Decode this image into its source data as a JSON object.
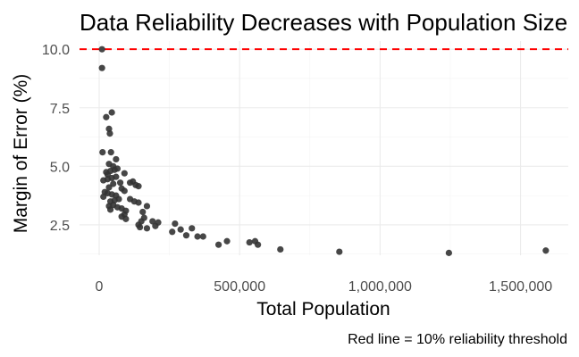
{
  "chart_data": {
    "type": "scatter",
    "title": "Data Reliability Decreases with Population Size",
    "xlabel": "Total Population",
    "ylabel": "Margin of Error (%)",
    "caption": "Red line = 10% reliability threshold",
    "xlim": [
      -70000,
      1670000
    ],
    "ylim": [
      1.2,
      10.35
    ],
    "x_ticks": [
      0,
      500000,
      1000000,
      1500000
    ],
    "x_tick_labels": [
      "0",
      "500,000",
      "1,000,000",
      "1,500,000"
    ],
    "y_ticks": [
      2.5,
      5.0,
      7.5,
      10.0
    ],
    "y_tick_labels": [
      "2.5",
      "5.0",
      "7.5",
      "10.0"
    ],
    "grid": true,
    "point_color": "#333333",
    "threshold": {
      "y": 10,
      "color": "#ff0000",
      "style": "dashed"
    },
    "points": [
      [
        10000,
        10.0
      ],
      [
        10000,
        9.2
      ],
      [
        25000,
        7.1
      ],
      [
        45000,
        7.3
      ],
      [
        35000,
        6.6
      ],
      [
        38000,
        6.4
      ],
      [
        12000,
        5.6
      ],
      [
        42000,
        5.6
      ],
      [
        60000,
        5.3
      ],
      [
        35000,
        5.1
      ],
      [
        50000,
        5.0
      ],
      [
        25000,
        4.75
      ],
      [
        40000,
        4.8
      ],
      [
        55000,
        4.85
      ],
      [
        65000,
        4.9
      ],
      [
        90000,
        4.7
      ],
      [
        30000,
        4.65
      ],
      [
        15000,
        4.4
      ],
      [
        30000,
        4.45
      ],
      [
        45000,
        4.5
      ],
      [
        60000,
        4.55
      ],
      [
        75000,
        4.3
      ],
      [
        110000,
        4.3
      ],
      [
        120000,
        4.35
      ],
      [
        130000,
        4.2
      ],
      [
        50000,
        4.25
      ],
      [
        35000,
        4.1
      ],
      [
        80000,
        4.05
      ],
      [
        140000,
        4.15
      ],
      [
        20000,
        3.9
      ],
      [
        30000,
        3.85
      ],
      [
        45000,
        3.8
      ],
      [
        60000,
        3.75
      ],
      [
        90000,
        3.95
      ],
      [
        70000,
        3.6
      ],
      [
        15000,
        3.7
      ],
      [
        40000,
        3.5
      ],
      [
        55000,
        3.55
      ],
      [
        110000,
        3.6
      ],
      [
        125000,
        3.5
      ],
      [
        140000,
        3.45
      ],
      [
        35000,
        3.3
      ],
      [
        50000,
        3.35
      ],
      [
        65000,
        3.25
      ],
      [
        80000,
        3.2
      ],
      [
        95000,
        3.1
      ],
      [
        40000,
        3.15
      ],
      [
        170000,
        3.3
      ],
      [
        155000,
        3.05
      ],
      [
        90000,
        2.95
      ],
      [
        80000,
        2.85
      ],
      [
        95000,
        2.75
      ],
      [
        160000,
        2.8
      ],
      [
        190000,
        2.65
      ],
      [
        210000,
        2.6
      ],
      [
        150000,
        2.65
      ],
      [
        270000,
        2.55
      ],
      [
        140000,
        2.5
      ],
      [
        200000,
        2.45
      ],
      [
        145000,
        2.4
      ],
      [
        170000,
        2.35
      ],
      [
        290000,
        2.3
      ],
      [
        330000,
        2.35
      ],
      [
        260000,
        2.2
      ],
      [
        310000,
        2.05
      ],
      [
        350000,
        2.0
      ],
      [
        370000,
        2.0
      ],
      [
        455000,
        1.8
      ],
      [
        425000,
        1.65
      ],
      [
        535000,
        1.75
      ],
      [
        555000,
        1.8
      ],
      [
        565000,
        1.65
      ],
      [
        645000,
        1.45
      ],
      [
        855000,
        1.35
      ],
      [
        1245000,
        1.3
      ],
      [
        1590000,
        1.4
      ]
    ]
  }
}
